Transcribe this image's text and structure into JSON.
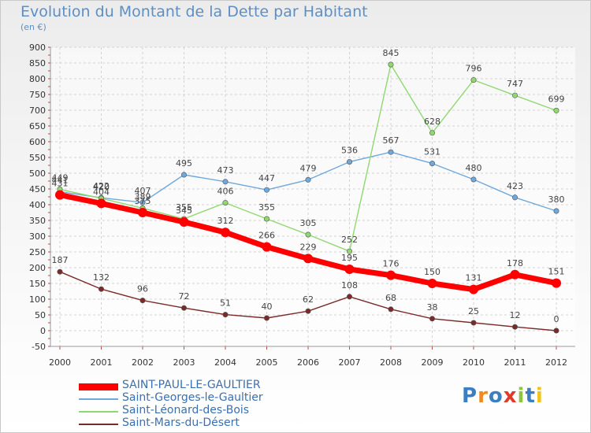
{
  "page": {
    "title": "Evolution du Montant de la Dette par Habitant",
    "subtitle": "(en €)",
    "logo": "Proxiti"
  },
  "chart_data": {
    "type": "line",
    "title": "Evolution du Montant de la Dette par Habitant",
    "subtitle": "(en €)",
    "xlabel": "",
    "ylabel": "",
    "x": [
      "2000",
      "2001",
      "2002",
      "2003",
      "2004",
      "2005",
      "2006",
      "2007",
      "2008",
      "2009",
      "2010",
      "2011",
      "2012"
    ],
    "ylim": [
      -50,
      900
    ],
    "yticks": [
      -50,
      0,
      50,
      100,
      150,
      200,
      250,
      300,
      350,
      400,
      450,
      500,
      550,
      600,
      650,
      700,
      750,
      800,
      850,
      900
    ],
    "grid": true,
    "legend_position": "bottom-left",
    "series": [
      {
        "name": "SAINT-PAUL-LE-GAULTIER",
        "color": "#ff0000",
        "values": [
          431,
          404,
          375,
          345,
          312,
          266,
          229,
          195,
          176,
          150,
          131,
          178,
          151
        ]
      },
      {
        "name": "Saint-Georges-le-Gaultier",
        "color": "#6fa8dc",
        "values": [
          441,
          422,
          407,
          495,
          473,
          447,
          479,
          536,
          567,
          531,
          480,
          423,
          380
        ]
      },
      {
        "name": "Saint-Léonard-des-Bois",
        "color": "#8fd96e",
        "values": [
          449,
          420,
          389,
          355,
          406,
          355,
          305,
          252,
          845,
          628,
          796,
          747,
          699
        ]
      },
      {
        "name": "Saint-Mars-du-Désert",
        "color": "#7b2a2a",
        "values": [
          187,
          132,
          96,
          72,
          51,
          40,
          62,
          108,
          68,
          38,
          25,
          12,
          0
        ]
      }
    ]
  }
}
